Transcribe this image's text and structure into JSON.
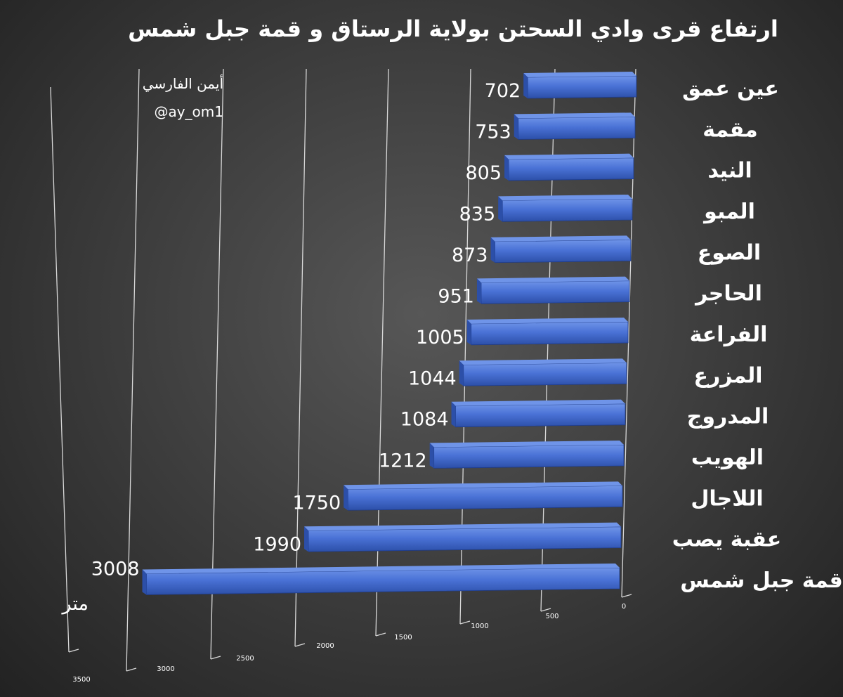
{
  "chart_data": {
    "type": "bar",
    "orientation": "horizontal",
    "title": "ارتفاع قرى وادي السحتن بولاية الرستاق و قمة جبل شمس",
    "categories": [
      "عين عمق",
      "مقمة",
      "النيد",
      "المبو",
      "الصوع",
      "الحاجر",
      "الفراعة",
      "المزرع",
      "المدروج",
      "الهويب",
      "اللاجال",
      "عقبة يصب",
      "قمة جبل شمس"
    ],
    "values": [
      702,
      753,
      805,
      835,
      873,
      951,
      1005,
      1044,
      1084,
      1212,
      1750,
      1990,
      3008
    ],
    "value_labels": [
      "702",
      "753",
      "805",
      "835",
      "873",
      "951",
      "1005",
      "1044",
      "1084",
      "1212",
      "1750",
      "1990",
      "3008"
    ],
    "unit_label": "متر",
    "x_ticks": [
      0,
      500,
      1000,
      1500,
      2000,
      2500,
      3000,
      3500
    ],
    "x_tick_labels": [
      "0",
      "500",
      "1000",
      "1500",
      "2000",
      "2500",
      "3000",
      "3500"
    ],
    "xlim": [
      0,
      3500
    ],
    "reversed_axis": true,
    "grid": true,
    "bar_color": "#4a72d6",
    "bar_top_color": "#6f94e8",
    "bar_side_color": "#2c4fa8",
    "annotation": {
      "author": "أيمن الفارسي",
      "handle": "@ay_om1"
    }
  }
}
